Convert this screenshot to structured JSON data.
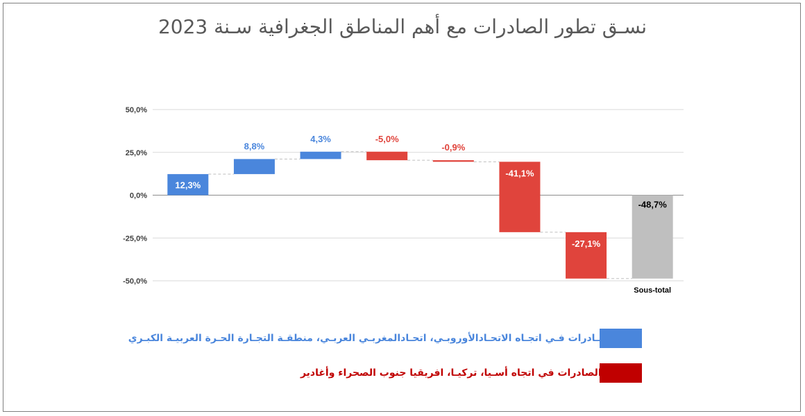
{
  "title": "نسـق تطور الصادرات مع أهم المناطق الجغرافية سـنة 2023",
  "colors": {
    "increase": "#4a86dc",
    "decrease": "#e0443c",
    "total": "#bfbfbf",
    "legend_increase_text": "#4a86dc",
    "legend_decrease_text": "#c00000",
    "legend_decrease_swatch": "#c00000"
  },
  "legend": {
    "increase_label": "نموالصـادرات فـي اتجـاه الاتحـادالأوروبـي، اتحـادالمغربـي العربـي، منطقـة التجـارة الحـرة العربيـة الكبـري",
    "decrease_label": "تراجع الصادرات في اتجاه أسـيا، تركيـا، افريقيا جنوب الصحراء وأغادير"
  },
  "chart_data": {
    "type": "waterfall",
    "title": "نسـق تطور الصادرات مع أهم المناطق الجغرافية سـنة 2023",
    "y_ticks": [
      "50,0%",
      "25,0%",
      "0,0%",
      "-25,0%",
      "-50,0%"
    ],
    "ylim": [
      -50,
      50
    ],
    "grid": true,
    "legend_position": "bottom",
    "steps": [
      {
        "value": 12.3,
        "label": "12,3%",
        "kind": "increase",
        "category": ""
      },
      {
        "value": 8.8,
        "label": "8,8%",
        "kind": "increase",
        "category": ""
      },
      {
        "value": 4.3,
        "label": "4,3%",
        "kind": "increase",
        "category": ""
      },
      {
        "value": -5.0,
        "label": "-5,0%",
        "kind": "decrease",
        "category": ""
      },
      {
        "value": -0.9,
        "label": "-0,9%",
        "kind": "decrease",
        "category": ""
      },
      {
        "value": -41.1,
        "label": "-41,1%",
        "kind": "decrease",
        "category": ""
      },
      {
        "value": -27.1,
        "label": "-27,1%",
        "kind": "decrease",
        "category": ""
      },
      {
        "value": -48.7,
        "label": "-48,7%",
        "kind": "total",
        "category": "Sous-total"
      }
    ]
  }
}
